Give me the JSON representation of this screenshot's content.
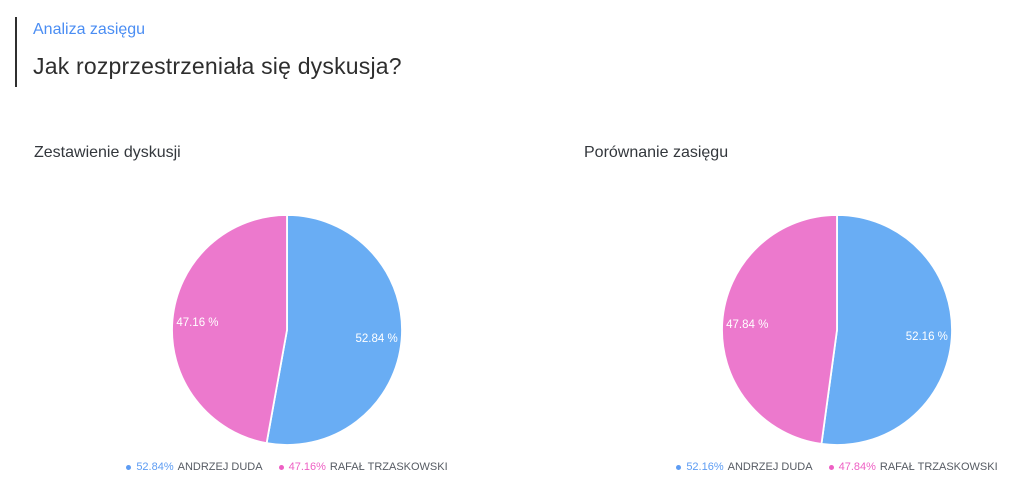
{
  "header": {
    "eyebrow": "Analiza zasięgu",
    "title": "Jak rozprzestrzeniała się dyskusja?"
  },
  "colors": {
    "accent_blue": "#4a8df3",
    "heading_dark": "#2e2e2e",
    "chart_title": "#33373c",
    "legend_name_gray": "#565b63",
    "pie_blue": "#69adf4",
    "pie_pink": "#ec79cd"
  },
  "chart_data": [
    {
      "type": "pie",
      "title": "Zestawienie dyskusji",
      "legend_position": "bottom",
      "slices": [
        {
          "label": "ANDRZEJ DUDA",
          "value": 52.84,
          "slice_label": "52.84 %",
          "legend_pct": "52.84%",
          "color": "#69adf4",
          "legend_color": "#5d9cf3"
        },
        {
          "label": "RAFAŁ TRZASKOWSKI",
          "value": 47.16,
          "slice_label": "47.16 %",
          "legend_pct": "47.16%",
          "color": "#ec79cd",
          "legend_color": "#ee5fc4"
        }
      ]
    },
    {
      "type": "pie",
      "title": "Porównanie zasięgu",
      "legend_position": "bottom",
      "slices": [
        {
          "label": "ANDRZEJ DUDA",
          "value": 52.16,
          "slice_label": "52.16 %",
          "legend_pct": "52.16%",
          "color": "#69adf4",
          "legend_color": "#5d9cf3"
        },
        {
          "label": "RAFAŁ TRZASKOWSKI",
          "value": 47.84,
          "slice_label": "47.84 %",
          "legend_pct": "47.84%",
          "color": "#ec79cd",
          "legend_color": "#ee5fc4"
        }
      ]
    }
  ]
}
